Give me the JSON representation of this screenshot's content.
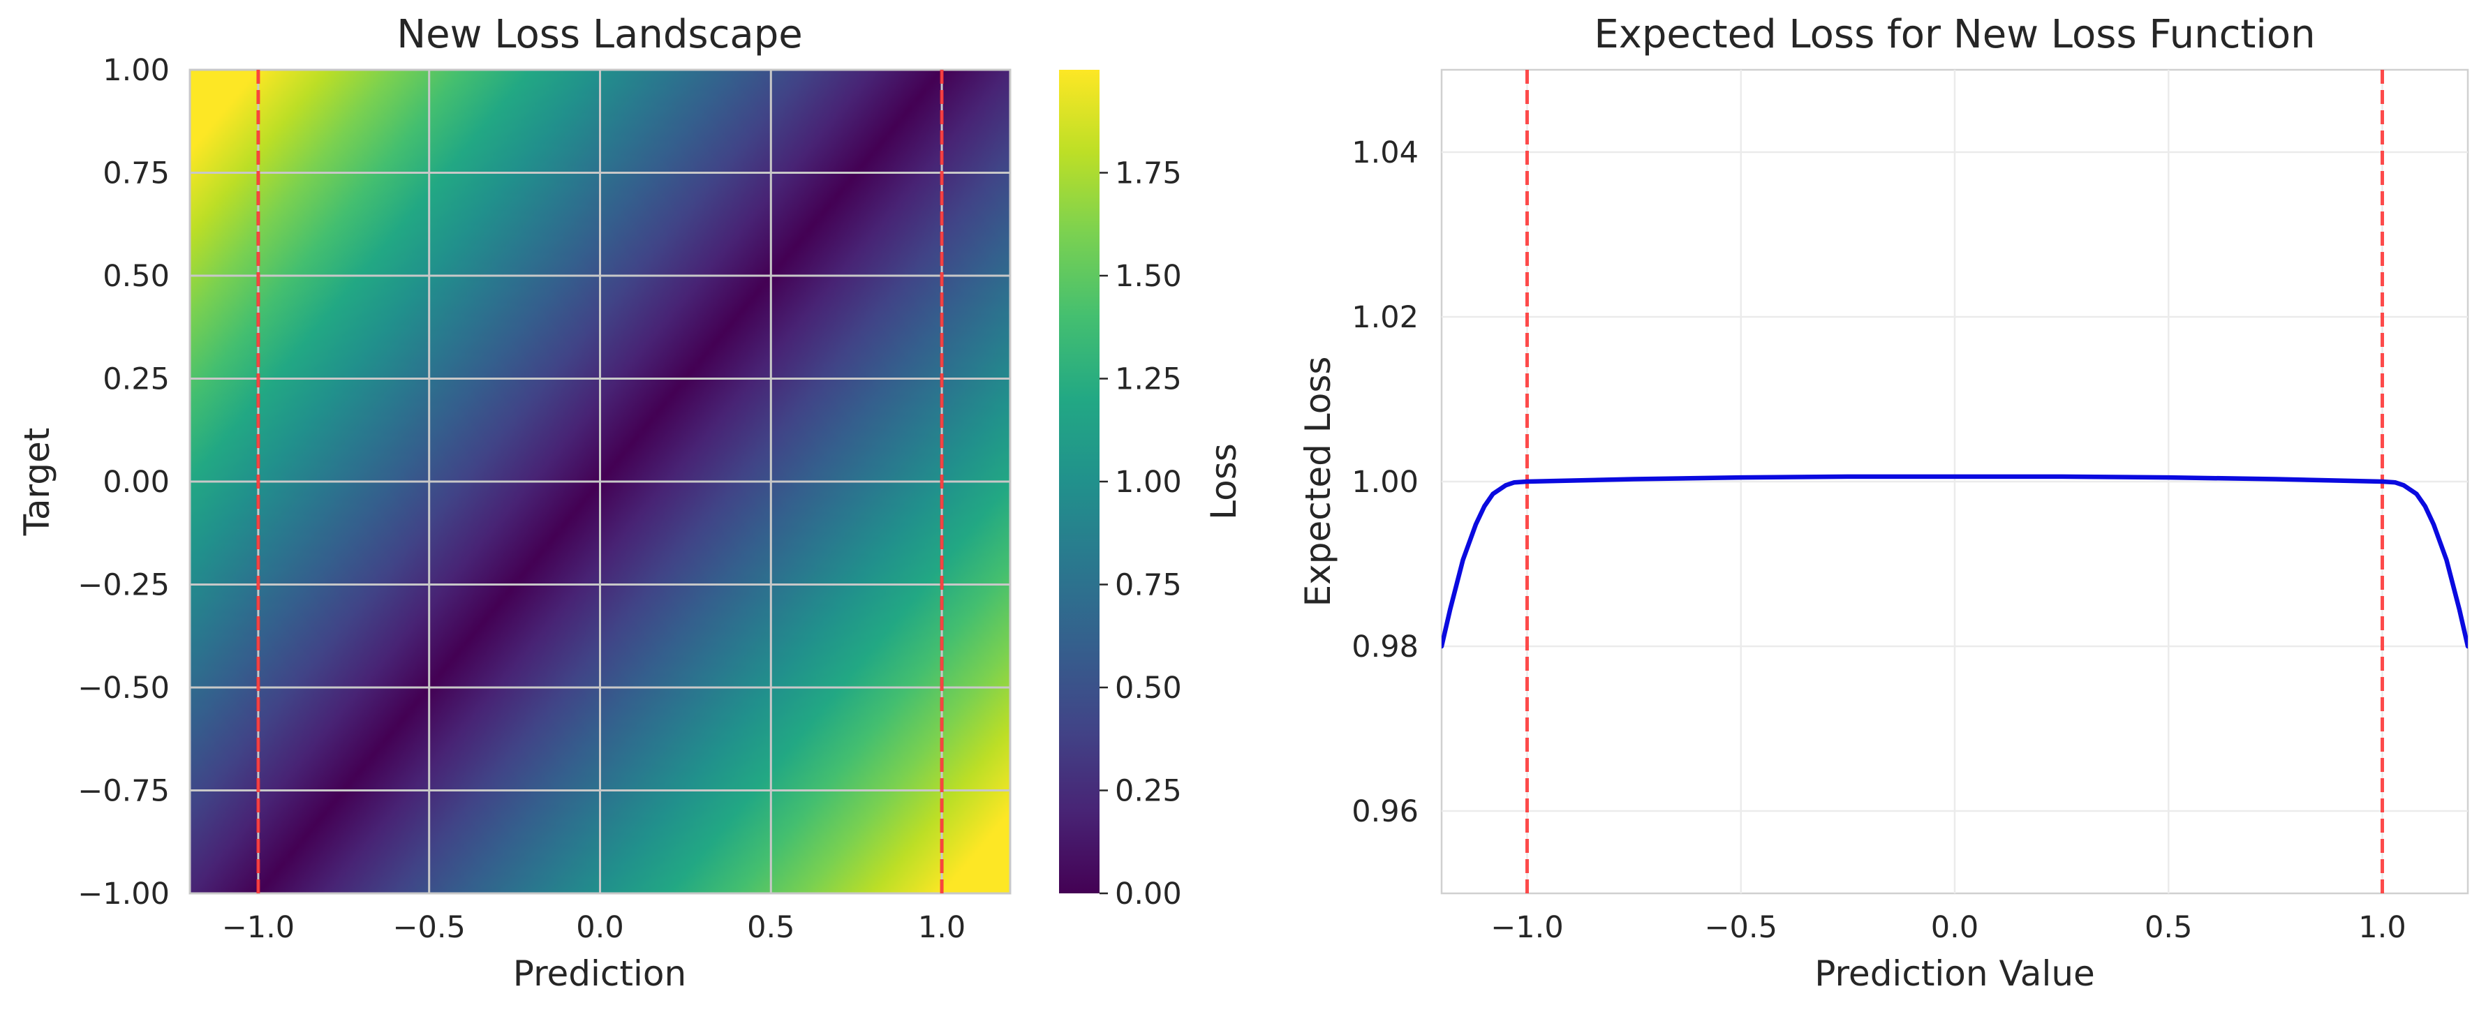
{
  "colors": {
    "grid_heatmap": "#c8c8c8",
    "grid_line_chart": "#ebebeb",
    "axes_edge": "#d0d0d0",
    "vline": "#ff2d2d",
    "curve": "#0a0adf",
    "text": "#262626"
  },
  "chart_data": [
    {
      "type": "heatmap",
      "title": "New Loss Landscape",
      "xlabel": "Prediction",
      "ylabel": "Target",
      "xlim": [
        -1.2,
        1.2
      ],
      "ylim": [
        -1.0,
        1.0
      ],
      "x_ticks": [
        -1.0,
        -0.5,
        0.0,
        0.5,
        1.0
      ],
      "x_tick_labels": [
        "−1.0",
        "−0.5",
        "0.0",
        "0.5",
        "1.0"
      ],
      "y_ticks": [
        -1.0,
        -0.75,
        -0.5,
        -0.25,
        0.0,
        0.25,
        0.5,
        0.75,
        1.0
      ],
      "y_tick_labels": [
        "−1.00",
        "−0.75",
        "−0.50",
        "−0.25",
        "0.00",
        "0.25",
        "0.50",
        "0.75",
        "1.00"
      ],
      "colormap": "viridis",
      "value_formula": "|prediction - target|",
      "grid": true,
      "vertical_lines": [
        -1.0,
        1.0
      ],
      "colorbar": {
        "label": "Loss",
        "range": [
          0.0,
          2.0
        ],
        "ticks": [
          0.0,
          0.25,
          0.5,
          0.75,
          1.0,
          1.25,
          1.5,
          1.75
        ],
        "tick_labels": [
          "0.00",
          "0.25",
          "0.50",
          "0.75",
          "1.00",
          "1.25",
          "1.50",
          "1.75"
        ]
      }
    },
    {
      "type": "line",
      "title": "Expected Loss for New Loss Function",
      "xlabel": "Prediction Value",
      "ylabel": "Expected Loss",
      "xlim": [
        -1.2,
        1.2
      ],
      "ylim": [
        0.95,
        1.05
      ],
      "x_ticks": [
        -1.0,
        -0.5,
        0.0,
        0.5,
        1.0
      ],
      "x_tick_labels": [
        "−1.0",
        "−0.5",
        "0.0",
        "0.5",
        "1.0"
      ],
      "y_ticks": [
        0.96,
        0.98,
        1.0,
        1.02,
        1.04
      ],
      "y_tick_labels": [
        "0.96",
        "0.98",
        "1.00",
        "1.02",
        "1.04"
      ],
      "grid": true,
      "vertical_lines": [
        -1.0,
        1.0
      ],
      "series": [
        {
          "x": [
            -1.2,
            -1.18,
            -1.15,
            -1.12,
            -1.1,
            -1.08,
            -1.05,
            -1.03,
            -1.0,
            -0.75,
            -0.5,
            -0.25,
            0.0,
            0.25,
            0.5,
            0.75,
            1.0,
            1.03,
            1.05,
            1.08,
            1.1,
            1.12,
            1.15,
            1.18,
            1.2
          ],
          "y": [
            0.98,
            0.9845,
            0.9905,
            0.9948,
            0.997,
            0.9985,
            0.99955,
            0.9999,
            1.0,
            1.0003,
            1.0005,
            1.0006,
            1.0006,
            1.0006,
            1.0005,
            1.0003,
            1.0,
            0.9999,
            0.99955,
            0.9985,
            0.997,
            0.9948,
            0.9905,
            0.9845,
            0.98
          ]
        }
      ]
    }
  ]
}
